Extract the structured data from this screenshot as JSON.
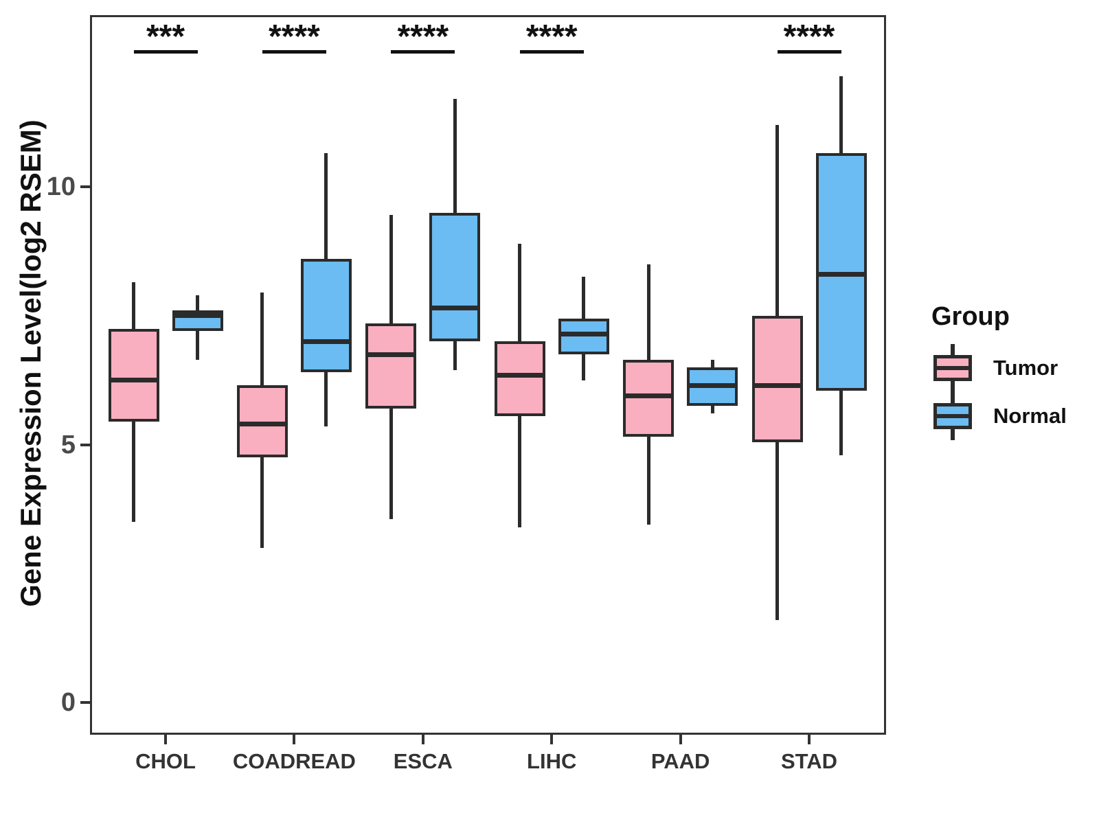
{
  "y_axis": {
    "label": "Gene Expression Level(log2 RSEM)",
    "ticks": [
      {
        "label": "0",
        "value": 0
      },
      {
        "label": "5",
        "value": 5
      },
      {
        "label": "10",
        "value": 10
      }
    ]
  },
  "x_axis": {
    "categories": [
      "CHOL",
      "COADREAD",
      "ESCA",
      "LIHC",
      "PAAD",
      "STAD"
    ]
  },
  "legend": {
    "title": "Group",
    "items": [
      {
        "label": "Tumor",
        "color": "#F9AFC0"
      },
      {
        "label": "Normal",
        "color": "#6BBCF2"
      }
    ]
  },
  "colors": {
    "tumor": "#F9AFC0",
    "normal": "#6BBCF2",
    "stroke": "#2B2B2B",
    "axis_text": "#333333"
  },
  "chart_data": {
    "type": "grouped_boxplot",
    "title": "",
    "xlabel": "",
    "ylabel": "Gene Expression Level(log2 RSEM)",
    "ylim": [
      -0.6,
      13.3
    ],
    "grid": false,
    "legend_position": "right",
    "categories": [
      "CHOL",
      "COADREAD",
      "ESCA",
      "LIHC",
      "PAAD",
      "STAD"
    ],
    "series": [
      {
        "name": "Tumor",
        "color": "#F9AFC0",
        "boxes": [
          {
            "category": "CHOL",
            "whisker_low": 3.5,
            "q1": 5.45,
            "median": 6.25,
            "q3": 7.25,
            "whisker_high": 8.15
          },
          {
            "category": "COADREAD",
            "whisker_low": 3.0,
            "q1": 4.75,
            "median": 5.4,
            "q3": 6.15,
            "whisker_high": 7.95
          },
          {
            "category": "ESCA",
            "whisker_low": 3.55,
            "q1": 5.7,
            "median": 6.75,
            "q3": 7.35,
            "whisker_high": 9.45
          },
          {
            "category": "LIHC",
            "whisker_low": 3.4,
            "q1": 5.55,
            "median": 6.35,
            "q3": 7.0,
            "whisker_high": 8.9
          },
          {
            "category": "PAAD",
            "whisker_low": 3.45,
            "q1": 5.15,
            "median": 5.95,
            "q3": 6.65,
            "whisker_high": 8.5
          },
          {
            "category": "STAD",
            "whisker_low": 1.6,
            "q1": 5.05,
            "median": 6.15,
            "q3": 7.5,
            "whisker_high": 11.2
          }
        ]
      },
      {
        "name": "Normal",
        "color": "#6BBCF2",
        "boxes": [
          {
            "category": "CHOL",
            "whisker_low": 6.65,
            "q1": 7.2,
            "median": 7.5,
            "q3": 7.6,
            "whisker_high": 7.9
          },
          {
            "category": "COADREAD",
            "whisker_low": 5.35,
            "q1": 6.4,
            "median": 7.0,
            "q3": 8.6,
            "whisker_high": 10.65
          },
          {
            "category": "ESCA",
            "whisker_low": 6.45,
            "q1": 7.0,
            "median": 7.65,
            "q3": 9.5,
            "whisker_high": 11.7
          },
          {
            "category": "LIHC",
            "whisker_low": 6.25,
            "q1": 6.75,
            "median": 7.15,
            "q3": 7.45,
            "whisker_high": 8.25
          },
          {
            "category": "PAAD",
            "whisker_low": 5.6,
            "q1": 5.75,
            "median": 6.15,
            "q3": 6.5,
            "whisker_high": 6.65
          },
          {
            "category": "STAD",
            "whisker_low": 4.8,
            "q1": 6.05,
            "median": 8.3,
            "q3": 10.65,
            "whisker_high": 12.15
          }
        ]
      }
    ],
    "significance": [
      {
        "category": "CHOL",
        "label": "***"
      },
      {
        "category": "COADREAD",
        "label": "****"
      },
      {
        "category": "ESCA",
        "label": "****"
      },
      {
        "category": "LIHC",
        "label": "****"
      },
      {
        "category": "STAD",
        "label": "****"
      }
    ]
  }
}
